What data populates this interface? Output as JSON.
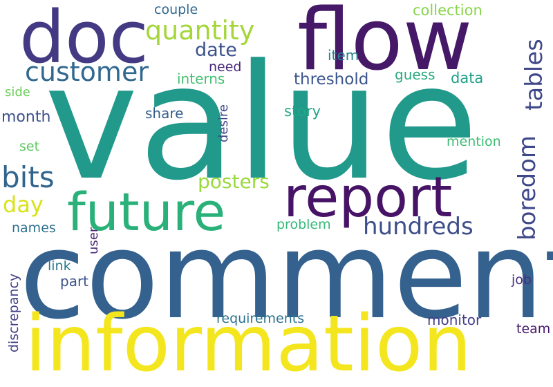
{
  "words": [
    {
      "key": "value",
      "text": "value",
      "color": "#21998b"
    },
    {
      "key": "comment",
      "text": "comment",
      "color": "#34618d"
    },
    {
      "key": "information",
      "text": "information",
      "color": "#f4e61e"
    },
    {
      "key": "flow",
      "text": "flow",
      "color": "#461868"
    },
    {
      "key": "doc",
      "text": "doc",
      "color": "#443a83"
    },
    {
      "key": "report",
      "text": "report",
      "color": "#471366"
    },
    {
      "key": "future",
      "text": "future",
      "color": "#2ab17a"
    },
    {
      "key": "customer",
      "text": "customer",
      "color": "#31688e"
    },
    {
      "key": "quantity",
      "text": "quantity",
      "color": "#a4d63a"
    },
    {
      "key": "boredom",
      "text": "boredom",
      "color": "#3f4889"
    },
    {
      "key": "tables",
      "text": "tables",
      "color": "#3f4889"
    },
    {
      "key": "bits",
      "text": "bits",
      "color": "#32658e"
    },
    {
      "key": "hundreds",
      "text": "hundreds",
      "color": "#3d4e8a"
    },
    {
      "key": "day",
      "text": "day",
      "color": "#dae21a"
    },
    {
      "key": "posters",
      "text": "posters",
      "color": "#9ad93c"
    },
    {
      "key": "date",
      "text": "date",
      "color": "#3b528b"
    },
    {
      "key": "threshold",
      "text": "threshold",
      "color": "#3a548c"
    },
    {
      "key": "couple",
      "text": "couple",
      "color": "#30698e"
    },
    {
      "key": "collection",
      "text": "collection",
      "color": "#86d549"
    },
    {
      "key": "item",
      "text": "item",
      "color": "#27808e"
    },
    {
      "key": "need",
      "text": "need",
      "color": "#482878"
    },
    {
      "key": "interns",
      "text": "interns",
      "color": "#43bf71"
    },
    {
      "key": "guess",
      "text": "guess",
      "color": "#2aa97f"
    },
    {
      "key": "data",
      "text": "data",
      "color": "#1fa088"
    },
    {
      "key": "side",
      "text": "side",
      "color": "#6ccd5a"
    },
    {
      "key": "month",
      "text": "month",
      "color": "#3c4f8a"
    },
    {
      "key": "share",
      "text": "share",
      "color": "#355e8d"
    },
    {
      "key": "story",
      "text": "story",
      "color": "#22a785"
    },
    {
      "key": "desire",
      "text": "desire",
      "color": "#3f4889"
    },
    {
      "key": "set",
      "text": "set",
      "color": "#5ec962"
    },
    {
      "key": "mention",
      "text": "mention",
      "color": "#3dbc74"
    },
    {
      "key": "names",
      "text": "names",
      "color": "#2d718e"
    },
    {
      "key": "problem",
      "text": "problem",
      "color": "#35b779"
    },
    {
      "key": "user",
      "text": "user",
      "color": "#482677"
    },
    {
      "key": "discrepancy",
      "text": "discrepancy",
      "color": "#423f85"
    },
    {
      "key": "link",
      "text": "link",
      "color": "#29798e"
    },
    {
      "key": "part",
      "text": "part",
      "color": "#3b528b"
    },
    {
      "key": "job",
      "text": "job",
      "color": "#46307e"
    },
    {
      "key": "requirements",
      "text": "requirements",
      "color": "#2c728e"
    },
    {
      "key": "monitor",
      "text": "monitor",
      "color": "#433e85"
    },
    {
      "key": "team",
      "text": "team",
      "color": "#481b6d"
    }
  ]
}
